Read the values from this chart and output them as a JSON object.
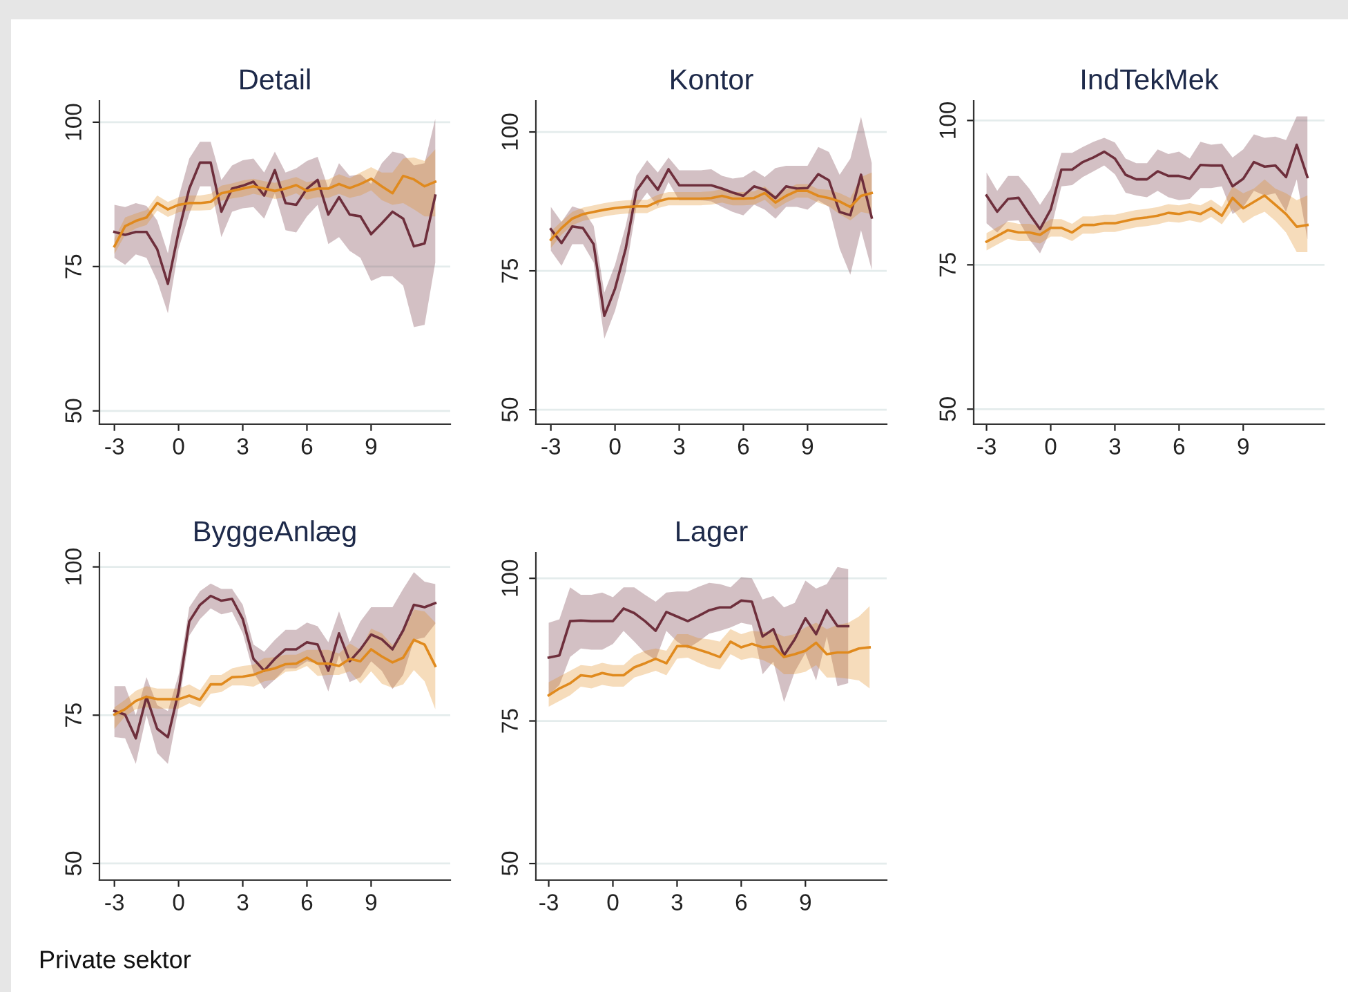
{
  "chart_data": [
    {
      "type": "line",
      "title": "Detail",
      "x": [
        -3,
        -2.5,
        -2,
        -1.5,
        -1,
        -0.5,
        0,
        0.5,
        1,
        1.5,
        2,
        2.5,
        3,
        3.5,
        4,
        4.5,
        5,
        5.5,
        6,
        6.5,
        7,
        7.5,
        8,
        8.5,
        9,
        9.5,
        10,
        10.5,
        11,
        11.5,
        12
      ],
      "xlim": [
        -3.7,
        12.7
      ],
      "xticks": [
        -3,
        0,
        3,
        6,
        9
      ],
      "ylim": [
        47.7,
        103.7
      ],
      "yticks": [
        50,
        75,
        100
      ],
      "grid": "y",
      "series": [
        {
          "color": "#6e2f3c",
          "values": [
            81,
            80.5,
            81,
            81,
            78,
            72,
            81,
            88.5,
            93,
            93,
            84.5,
            88.5,
            89,
            89.7,
            87.3,
            91.7,
            86,
            85.7,
            88.5,
            90,
            84,
            87,
            84,
            83.7,
            80.6,
            82.5,
            84.5,
            83.3,
            78.5,
            79,
            87.3
          ],
          "upper": [
            85.7,
            85.3,
            86,
            85.5,
            83,
            77.3,
            87,
            93.7,
            96.6,
            96.6,
            90,
            92.5,
            93.4,
            93.7,
            91.3,
            94.9,
            91.3,
            92,
            93.3,
            94,
            88.5,
            92.9,
            90.7,
            91,
            89.3,
            92.9,
            94.9,
            94.5,
            92.5,
            92.9,
            100.6
          ],
          "lower": [
            76.5,
            75.3,
            77.1,
            76.5,
            72.5,
            66.9,
            78.1,
            84.1,
            88.9,
            88.9,
            80.1,
            84.5,
            85.1,
            85.3,
            83.3,
            87.7,
            81.3,
            80.9,
            83.7,
            85.7,
            78.9,
            80.1,
            77.7,
            76.5,
            72.5,
            73.3,
            73.3,
            71.7,
            64.5,
            64.9,
            75.7
          ]
        },
        {
          "color": "#e08a1e",
          "values": [
            78.5,
            82,
            82.9,
            83.5,
            86,
            84.9,
            85.7,
            86,
            86,
            86.2,
            87.7,
            88.1,
            88.5,
            88.9,
            88.5,
            88.1,
            88.5,
            89.1,
            88.1,
            88.5,
            88.5,
            89.3,
            88.6,
            89.3,
            90.2,
            88.9,
            87.7,
            90.7,
            90.1,
            88.9,
            89.7
          ],
          "upper": [
            79.8,
            83.5,
            84.2,
            84.8,
            87.3,
            86.2,
            87,
            87.3,
            87.3,
            87.6,
            89,
            89.4,
            89.9,
            90.2,
            89.8,
            89.5,
            90,
            90.5,
            89.6,
            90,
            90.1,
            91,
            90.3,
            91.3,
            92.2,
            91.3,
            91.3,
            93.7,
            93.9,
            93.3,
            95.3
          ],
          "lower": [
            77.2,
            80.5,
            81.6,
            82.2,
            84.7,
            83.6,
            84.4,
            84.7,
            84.7,
            84.8,
            86.4,
            86.8,
            87.1,
            87.6,
            87.2,
            86.7,
            87,
            87.7,
            86.6,
            87,
            86.9,
            87.6,
            86.9,
            87.3,
            88.2,
            86.5,
            85.7,
            86,
            84.9,
            83.7,
            83.7
          ]
        }
      ]
    },
    {
      "type": "line",
      "title": "Kontor",
      "x": [
        -3,
        -2.5,
        -2,
        -1.5,
        -1,
        -0.5,
        0,
        0.5,
        1,
        1.5,
        2,
        2.5,
        3,
        3.5,
        4,
        4.5,
        5,
        5.5,
        6,
        6.5,
        7,
        7.5,
        8,
        8.5,
        9,
        9.5,
        10,
        10.5,
        11,
        11.5,
        12
      ],
      "xlim": [
        -3.7,
        12.7
      ],
      "xticks": [
        -3,
        0,
        3,
        6,
        9
      ],
      "ylim": [
        47.4,
        105.6
      ],
      "yticks": [
        50,
        75,
        100
      ],
      "grid": "y",
      "series": [
        {
          "color": "#6e2f3c",
          "values": [
            82.5,
            80,
            83,
            82.7,
            79.8,
            66.9,
            71.8,
            79,
            89.4,
            92.1,
            89.6,
            93.3,
            90.4,
            90.4,
            90.4,
            90.4,
            89.8,
            89.1,
            88.5,
            90.2,
            89.6,
            88.1,
            90.2,
            89.8,
            89.9,
            92.4,
            91.3,
            85.6,
            85,
            92.3,
            84.6
          ],
          "upper": [
            86.5,
            83.8,
            86.6,
            86,
            83.1,
            71.1,
            76.1,
            83.1,
            92.1,
            94.9,
            92.7,
            95.4,
            93.1,
            93.1,
            93.1,
            93.3,
            92.1,
            91.6,
            91.9,
            93.1,
            91.9,
            93.5,
            93.9,
            93.9,
            93.9,
            97.3,
            96.4,
            92.3,
            95.2,
            102.7,
            94.4
          ],
          "lower": [
            78.6,
            75.9,
            79.8,
            79.8,
            76.5,
            62.8,
            67.8,
            74.8,
            86.5,
            89.1,
            86.6,
            91,
            87.7,
            87.7,
            87.7,
            87.5,
            86.5,
            85.6,
            85,
            86.9,
            86,
            84.4,
            86.5,
            86.5,
            86,
            87.7,
            86.5,
            79,
            74.3,
            82.3,
            75.2
          ]
        },
        {
          "color": "#e08a1e",
          "values": [
            80.6,
            82.7,
            84.4,
            85.2,
            85.6,
            86,
            86.3,
            86.5,
            86.6,
            86.6,
            87.5,
            88,
            88,
            88,
            88,
            88.1,
            88.5,
            88,
            88,
            88.1,
            89,
            87.3,
            88.5,
            89.4,
            89.4,
            88.5,
            88.1,
            87.5,
            86.5,
            88.5,
            89
          ],
          "upper": [
            82.1,
            83.9,
            85.6,
            86.4,
            86.8,
            87.2,
            87.5,
            87.7,
            87.8,
            87.8,
            88.7,
            89.2,
            89.2,
            89.2,
            89.2,
            89.3,
            89.7,
            89.2,
            89.2,
            89.3,
            90.2,
            88.5,
            89.7,
            90.6,
            90.6,
            89.7,
            89.6,
            89,
            88.1,
            91.9,
            92.7
          ],
          "lower": [
            79.1,
            81.5,
            83.2,
            84,
            84.4,
            84.8,
            85.1,
            85.3,
            85.4,
            85.4,
            86.3,
            86.8,
            86.8,
            86.8,
            86.8,
            86.9,
            87.3,
            86.8,
            86.8,
            86.9,
            87.8,
            86.1,
            87.3,
            88.2,
            88.2,
            87.3,
            86.6,
            85.2,
            84.1,
            85.6,
            85.2
          ]
        }
      ]
    },
    {
      "type": "line",
      "title": "IndTekMek",
      "x": [
        -3,
        -2.5,
        -2,
        -1.5,
        -1,
        -0.5,
        0,
        0.5,
        1,
        1.5,
        2,
        2.5,
        3,
        3.5,
        4,
        4.5,
        5,
        5.5,
        6,
        6.5,
        7,
        7.5,
        8,
        8.5,
        9,
        9.5,
        10,
        10.5,
        11,
        11.5,
        12
      ],
      "xlim": [
        -3.6,
        12.8
      ],
      "xticks": [
        -3,
        0,
        3,
        6,
        9
      ],
      "ylim": [
        47.4,
        103.4
      ],
      "yticks": [
        50,
        75,
        100
      ],
      "grid": "y",
      "series": [
        {
          "color": "#6e2f3c",
          "values": [
            87,
            84.2,
            86.4,
            86.6,
            83.8,
            81.2,
            84.6,
            91.5,
            91.5,
            92.8,
            93.6,
            94.6,
            93.4,
            90.6,
            89.8,
            89.8,
            91.2,
            90.4,
            90.4,
            89.9,
            92.3,
            92.2,
            92.2,
            88.6,
            89.9,
            92.8,
            92,
            92.2,
            90.2,
            95.8,
            90.2
          ],
          "upper": [
            91,
            87.8,
            90.4,
            90.4,
            88.2,
            85.4,
            88.2,
            94.4,
            94.4,
            95.4,
            96.3,
            97,
            96.2,
            93.4,
            92.6,
            92.6,
            95,
            94.2,
            94.6,
            93.4,
            96.3,
            95.8,
            96,
            93.6,
            95,
            97.6,
            97,
            97.2,
            96.6,
            100.7,
            100.7
          ],
          "lower": [
            82.2,
            80.6,
            82.6,
            82.7,
            79.4,
            77,
            81,
            88.6,
            88.8,
            90.2,
            91.2,
            92.2,
            90.7,
            87.5,
            87,
            86.7,
            87.8,
            86.7,
            86.2,
            86.4,
            88.3,
            88.3,
            88.6,
            83.8,
            85,
            87.8,
            87,
            87.4,
            84.2,
            89.8,
            79.4
          ]
        },
        {
          "color": "#e08a1e",
          "values": [
            79,
            80,
            81,
            80.6,
            80.6,
            80.2,
            81.4,
            81.4,
            80.6,
            81.9,
            81.9,
            82.2,
            82.2,
            82.6,
            83,
            83.2,
            83.5,
            84,
            83.8,
            84.2,
            83.8,
            84.8,
            83.5,
            86.6,
            84.8,
            85.9,
            87,
            85.4,
            83.8,
            81.6,
            81.9
          ],
          "upper": [
            80.5,
            81.5,
            82.5,
            82.1,
            82.1,
            81.7,
            82.9,
            82.9,
            82.1,
            83.4,
            83.4,
            83.7,
            83.7,
            84.1,
            84.5,
            84.7,
            85,
            85.5,
            85.3,
            85.7,
            85.3,
            86.3,
            85,
            88.6,
            87.4,
            88.2,
            89.8,
            88.2,
            87.4,
            86.2,
            87
          ],
          "lower": [
            77.5,
            78.5,
            79.5,
            79.1,
            79.1,
            78.7,
            79.9,
            79.9,
            79.1,
            80.4,
            80.4,
            80.7,
            80.7,
            81.1,
            81.5,
            81.7,
            82,
            82.5,
            82.3,
            82.7,
            82.3,
            83.3,
            82,
            84.6,
            82.2,
            83.4,
            84.2,
            82.6,
            80.6,
            77.2,
            77.2
          ]
        }
      ]
    },
    {
      "type": "line",
      "title": "ByggeAnlæg",
      "x": [
        -3,
        -2.5,
        -2,
        -1.5,
        -1,
        -0.5,
        0,
        0.5,
        1,
        1.5,
        2,
        2.5,
        3,
        3.5,
        4,
        4.5,
        5,
        5.5,
        6,
        6.5,
        7,
        7.5,
        8,
        8.5,
        9,
        9.5,
        10,
        10.5,
        11,
        11.5,
        12
      ],
      "xlim": [
        -3.7,
        12.7
      ],
      "xticks": [
        -3,
        0,
        3,
        6,
        9
      ],
      "ylim": [
        47.2,
        102.4
      ],
      "yticks": [
        50,
        75,
        100
      ],
      "grid": "y",
      "series": [
        {
          "color": "#6e2f3c",
          "values": [
            75.7,
            75.1,
            71.1,
            78.1,
            72.7,
            71.3,
            79,
            90.8,
            93.6,
            95.1,
            94.3,
            94.6,
            91.2,
            84.5,
            82.5,
            84.5,
            86.1,
            86.1,
            87.3,
            86.9,
            82.5,
            88.8,
            84.1,
            86.1,
            88.6,
            87.8,
            86.1,
            89.3,
            93.6,
            93.2,
            93.9
          ],
          "upper": [
            79.9,
            79.9,
            75,
            81.4,
            76.7,
            75.7,
            81.8,
            93.2,
            95.9,
            97.2,
            96.3,
            96.3,
            93.6,
            86.9,
            85.7,
            87.7,
            89.4,
            89.4,
            90.6,
            90,
            87.3,
            92.5,
            87.3,
            90.8,
            93.2,
            93.2,
            93.2,
            96.3,
            99.1,
            97.5,
            97.1
          ],
          "lower": [
            71.3,
            71.1,
            66.8,
            75,
            68.6,
            66.8,
            76.3,
            88.4,
            91.2,
            93,
            92,
            92.4,
            88.8,
            82.2,
            79.4,
            81,
            82.9,
            82.9,
            84.1,
            83.7,
            79,
            85.1,
            80.6,
            81.4,
            84.1,
            82.5,
            79.4,
            81.8,
            87.7,
            88.1,
            90.4
          ]
        },
        {
          "color": "#e08a1e",
          "values": [
            75.1,
            76,
            77.4,
            78.1,
            77.7,
            77.7,
            77.7,
            78.3,
            77.6,
            80.2,
            80.2,
            81.4,
            81.5,
            81.8,
            82.5,
            82.9,
            83.6,
            83.7,
            84.7,
            83.7,
            83.7,
            83.3,
            84.5,
            84.1,
            86.1,
            84.9,
            83.9,
            84.7,
            87.7,
            86.9,
            83.3
          ],
          "upper": [
            76.3,
            77.6,
            79.1,
            79.9,
            79.5,
            79.5,
            79.5,
            80.2,
            79.2,
            81.8,
            81.8,
            82.9,
            83.3,
            83.5,
            84.6,
            84.8,
            85.2,
            85.2,
            86,
            86,
            86,
            85.4,
            87.1,
            86,
            89.6,
            88.8,
            86.8,
            88.8,
            92.8,
            92.5,
            90.6
          ],
          "lower": [
            72.7,
            74.8,
            76,
            76.3,
            76.1,
            76.1,
            76.1,
            77,
            76.3,
            78.6,
            78.9,
            80,
            80,
            79.8,
            80.7,
            81,
            82.3,
            82.5,
            83.3,
            81.6,
            81.8,
            81.8,
            82.4,
            80.3,
            82.4,
            80.3,
            79.6,
            80.2,
            82.6,
            80.7,
            76
          ]
        }
      ]
    },
    {
      "type": "line",
      "title": "Lager",
      "x": [
        -3,
        -2.5,
        -2,
        -1.5,
        -1,
        -0.5,
        0,
        0.5,
        1,
        1.5,
        2,
        2.5,
        3,
        3.5,
        4,
        4.5,
        5,
        5.5,
        6,
        6.5,
        7,
        7.5,
        8,
        8.5,
        9,
        9.5,
        10,
        10.5,
        11,
        11.5,
        12
      ],
      "xlim": [
        -3.6,
        12.8
      ],
      "xticks": [
        -3,
        0,
        3,
        6,
        9
      ],
      "ylim": [
        47.1,
        104.5
      ],
      "yticks": [
        50,
        75,
        100
      ],
      "grid": "y",
      "annotations": [
        "Private sektor"
      ],
      "series": [
        {
          "color": "#6e2f3c",
          "x": [
            -3,
            -2.5,
            -2,
            -1.5,
            -1,
            -0.5,
            0,
            0.5,
            1,
            1.5,
            2,
            2.5,
            3,
            3.5,
            4,
            4.5,
            5,
            5.5,
            6,
            6.5,
            7,
            7.5,
            8,
            8.5,
            9,
            9.5,
            10,
            10.5,
            11
          ],
          "values": [
            86.1,
            86.5,
            92.5,
            92.6,
            92.5,
            92.5,
            92.5,
            94.7,
            93.9,
            92.5,
            90.8,
            94.1,
            93.3,
            92.5,
            93.4,
            94.4,
            94.9,
            94.9,
            96.1,
            95.9,
            89.8,
            91.1,
            86.5,
            89.3,
            93,
            90.2,
            94.4,
            91.6,
            91.6
          ],
          "upper": [
            92.2,
            92.8,
            98.4,
            97.1,
            97.1,
            97.5,
            96.7,
            98.4,
            98.4,
            97.1,
            95.9,
            97.5,
            97.7,
            97.7,
            98.5,
            99.2,
            99,
            98.4,
            100.2,
            100,
            96.3,
            96.9,
            94.9,
            95.7,
            99.6,
            98.2,
            99,
            102,
            101.6
          ],
          "lower": [
            79.5,
            81.3,
            86.2,
            87.7,
            87.5,
            87.5,
            88.5,
            90.8,
            88.9,
            86.9,
            85.7,
            90.8,
            88.9,
            87.7,
            88.9,
            90.3,
            90.8,
            91.4,
            92.2,
            91.8,
            83.2,
            85.4,
            78.3,
            83.6,
            86.9,
            82.1,
            89.8,
            81.1,
            81.6
          ]
        },
        {
          "color": "#e08a1e",
          "values": [
            79.5,
            80.7,
            81.6,
            83,
            82.8,
            83.4,
            83,
            83,
            84.4,
            85.1,
            85.9,
            85.1,
            88.1,
            88.1,
            87.5,
            86.9,
            86.2,
            88.9,
            87.9,
            88.5,
            87.9,
            88.1,
            86.2,
            86.7,
            87.3,
            88.7,
            86.7,
            87,
            87,
            87.7,
            87.9
          ],
          "upper": [
            81.8,
            82.8,
            83.8,
            84.8,
            84.6,
            85.2,
            84.8,
            84.8,
            86.5,
            87.3,
            87.7,
            87.3,
            90.2,
            90.2,
            89.5,
            89.3,
            88.9,
            91.1,
            90.2,
            90.8,
            90.6,
            90.6,
            89.8,
            90.2,
            91.4,
            92.2,
            91.1,
            91.8,
            92.2,
            93.3,
            95.1
          ],
          "lower": [
            77.5,
            78.5,
            79.5,
            81,
            80.7,
            81.3,
            81,
            81,
            82.6,
            83.2,
            83.8,
            83,
            85.9,
            86.1,
            85.2,
            84.4,
            84,
            86.7,
            85.7,
            86.1,
            85.7,
            84.8,
            83.2,
            83.2,
            83.6,
            84.8,
            82.6,
            82.6,
            82.4,
            82.1,
            80.7
          ]
        }
      ]
    }
  ]
}
